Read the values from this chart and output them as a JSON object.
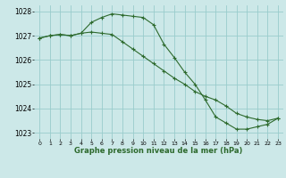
{
  "title": "Graphe pression niveau de la mer (hPa)",
  "bg_color": "#cce8e8",
  "grid_color": "#99cccc",
  "line_color": "#2d6a2d",
  "x_values": [
    0,
    1,
    2,
    3,
    4,
    5,
    6,
    7,
    8,
    9,
    10,
    11,
    12,
    13,
    14,
    15,
    16,
    17,
    18,
    19,
    20,
    21,
    22,
    23
  ],
  "line1": [
    1026.9,
    1027.0,
    1027.05,
    1027.0,
    1027.1,
    1027.55,
    1027.75,
    1027.9,
    1027.85,
    1027.8,
    1027.75,
    1027.45,
    1026.65,
    1026.1,
    1025.5,
    1025.0,
    1024.35,
    1023.65,
    1023.4,
    1023.15,
    1023.15,
    1023.25,
    1023.35,
    1023.6
  ],
  "line2": [
    1026.9,
    1027.0,
    1027.05,
    1027.0,
    1027.1,
    1027.15,
    1027.1,
    1027.05,
    1026.75,
    1026.45,
    1026.15,
    1025.85,
    1025.55,
    1025.25,
    1025.0,
    1024.7,
    1024.5,
    1024.35,
    1024.1,
    1023.8,
    1023.65,
    1023.55,
    1023.5,
    1023.6
  ],
  "ylim": [
    1022.75,
    1028.25
  ],
  "yticks": [
    1023,
    1024,
    1025,
    1026,
    1027,
    1028
  ],
  "xticks": [
    0,
    1,
    2,
    3,
    4,
    5,
    6,
    7,
    8,
    9,
    10,
    11,
    12,
    13,
    14,
    15,
    16,
    17,
    18,
    19,
    20,
    21,
    22,
    23
  ]
}
